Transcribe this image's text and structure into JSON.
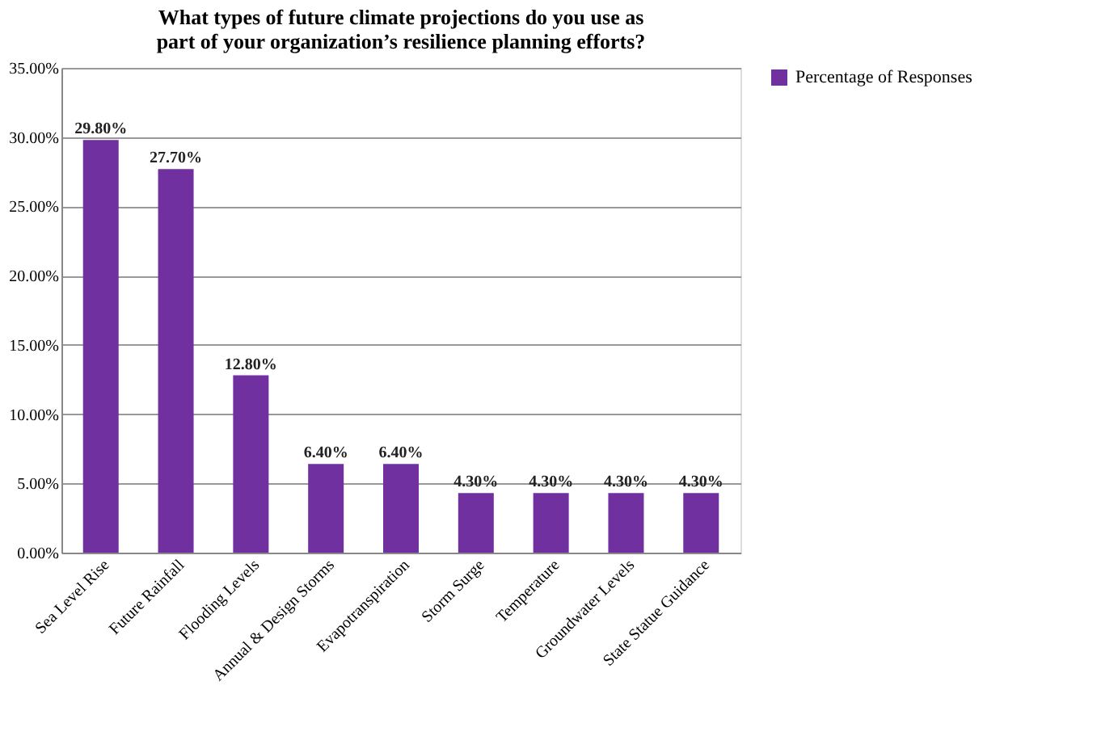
{
  "chart_data": {
    "type": "bar",
    "title": "What types of future climate projections do you use as part of your organization’s resilience planning efforts?",
    "categories": [
      "Sea Level Rise",
      "Future Rainfall",
      "Flooding Levels",
      "Annual & Design Storms",
      "Evapotranspiration",
      "Storm Surge",
      "Temperature",
      "Groundwater Levels",
      "State Statue Guidance"
    ],
    "series": [
      {
        "name": "Percentage of Responses",
        "color": "#7030a0",
        "values": [
          29.8,
          27.7,
          12.8,
          6.4,
          6.4,
          4.3,
          4.3,
          4.3,
          4.3
        ],
        "value_labels": [
          "29.80%",
          "27.70%",
          "12.80%",
          "6.40%",
          "6.40%",
          "4.30%",
          "4.30%",
          "4.30%",
          "4.30%"
        ]
      }
    ],
    "ylim": [
      0,
      35
    ],
    "yticks": [
      {
        "value": 0,
        "label": "0.00%"
      },
      {
        "value": 5,
        "label": "5.00%"
      },
      {
        "value": 10,
        "label": "10.00%"
      },
      {
        "value": 15,
        "label": "15.00%"
      },
      {
        "value": 20,
        "label": "20.00%"
      },
      {
        "value": 25,
        "label": "25.00%"
      },
      {
        "value": 30,
        "label": "30.00%"
      },
      {
        "value": 35,
        "label": "35.00%"
      }
    ],
    "grid": "y",
    "legend": "right"
  }
}
